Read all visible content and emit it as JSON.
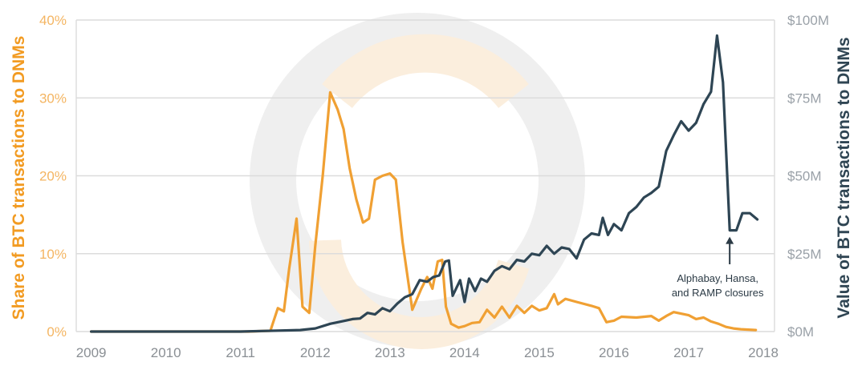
{
  "chart_data": {
    "type": "line",
    "ylabel_left": "Share of BTC transactions to DNMs",
    "ylabel_right": "Value of BTC transactions to DNMs",
    "x_ticks": [
      "2009",
      "2010",
      "2011",
      "2012",
      "2013",
      "2014",
      "2015",
      "2016",
      "2017",
      "2018"
    ],
    "y_left_ticks": [
      "0%",
      "10%",
      "20%",
      "30%",
      "40%"
    ],
    "y_right_ticks": [
      "$0M",
      "$25M",
      "$50M",
      "$75M",
      "$100M"
    ],
    "ylim_left": [
      0,
      40
    ],
    "ylim_right": [
      0,
      100
    ],
    "xlim": [
      2008.8,
      2018.15
    ],
    "grid": true,
    "colors": {
      "share": "#f0a033",
      "value": "#2e4554",
      "watermark": "#efefef"
    },
    "series": [
      {
        "axis": "left",
        "points": [
          [
            2009.0,
            0
          ],
          [
            2011.1,
            0
          ],
          [
            2011.4,
            0.1
          ],
          [
            2011.5,
            3.0
          ],
          [
            2011.58,
            2.6
          ],
          [
            2011.65,
            8.0
          ],
          [
            2011.75,
            14.5
          ],
          [
            2011.83,
            3.2
          ],
          [
            2011.92,
            2.4
          ],
          [
            2012.0,
            11.0
          ],
          [
            2012.1,
            20.0
          ],
          [
            2012.2,
            30.7
          ],
          [
            2012.3,
            28.5
          ],
          [
            2012.38,
            26.0
          ],
          [
            2012.46,
            21.0
          ],
          [
            2012.55,
            17.0
          ],
          [
            2012.64,
            14.0
          ],
          [
            2012.72,
            14.5
          ],
          [
            2012.8,
            19.5
          ],
          [
            2012.9,
            20.0
          ],
          [
            2013.0,
            20.3
          ],
          [
            2013.08,
            19.5
          ],
          [
            2013.17,
            11.5
          ],
          [
            2013.3,
            2.8
          ],
          [
            2013.42,
            5.5
          ],
          [
            2013.5,
            7.0
          ],
          [
            2013.57,
            5.5
          ],
          [
            2013.64,
            9.0
          ],
          [
            2013.7,
            9.2
          ],
          [
            2013.75,
            3.2
          ],
          [
            2013.82,
            1.0
          ],
          [
            2013.92,
            0.5
          ],
          [
            2014.0,
            0.7
          ],
          [
            2014.1,
            1.1
          ],
          [
            2014.2,
            1.2
          ],
          [
            2014.3,
            2.8
          ],
          [
            2014.4,
            1.8
          ],
          [
            2014.5,
            3.2
          ],
          [
            2014.6,
            1.8
          ],
          [
            2014.7,
            3.3
          ],
          [
            2014.8,
            2.4
          ],
          [
            2014.9,
            3.3
          ],
          [
            2015.0,
            2.7
          ],
          [
            2015.1,
            3.0
          ],
          [
            2015.2,
            4.8
          ],
          [
            2015.25,
            3.5
          ],
          [
            2015.35,
            4.2
          ],
          [
            2015.5,
            3.8
          ],
          [
            2015.7,
            3.3
          ],
          [
            2015.8,
            3.0
          ],
          [
            2015.9,
            1.2
          ],
          [
            2016.0,
            1.4
          ],
          [
            2016.1,
            1.9
          ],
          [
            2016.3,
            1.8
          ],
          [
            2016.5,
            2.0
          ],
          [
            2016.6,
            1.4
          ],
          [
            2016.7,
            2.0
          ],
          [
            2016.8,
            2.5
          ],
          [
            2017.0,
            2.1
          ],
          [
            2017.1,
            1.6
          ],
          [
            2017.2,
            1.8
          ],
          [
            2017.3,
            1.3
          ],
          [
            2017.4,
            1.0
          ],
          [
            2017.5,
            0.6
          ],
          [
            2017.6,
            0.4
          ],
          [
            2017.7,
            0.3
          ],
          [
            2017.9,
            0.2
          ]
        ]
      },
      {
        "axis": "right",
        "points": [
          [
            2009.0,
            0
          ],
          [
            2011.0,
            0
          ],
          [
            2011.5,
            0.3
          ],
          [
            2011.8,
            0.5
          ],
          [
            2012.0,
            1.0
          ],
          [
            2012.2,
            2.5
          ],
          [
            2012.4,
            3.5
          ],
          [
            2012.5,
            4.0
          ],
          [
            2012.6,
            4.2
          ],
          [
            2012.7,
            6.0
          ],
          [
            2012.8,
            5.5
          ],
          [
            2012.9,
            7.5
          ],
          [
            2013.0,
            6.5
          ],
          [
            2013.1,
            9.0
          ],
          [
            2013.2,
            11.0
          ],
          [
            2013.3,
            12.0
          ],
          [
            2013.4,
            16.5
          ],
          [
            2013.5,
            16.0
          ],
          [
            2013.58,
            17.5
          ],
          [
            2013.66,
            18.0
          ],
          [
            2013.74,
            22.5
          ],
          [
            2013.79,
            22.8
          ],
          [
            2013.84,
            11.5
          ],
          [
            2013.94,
            16.5
          ],
          [
            2014.0,
            9.5
          ],
          [
            2014.06,
            17.0
          ],
          [
            2014.14,
            13.0
          ],
          [
            2014.22,
            17.0
          ],
          [
            2014.3,
            16.0
          ],
          [
            2014.4,
            19.5
          ],
          [
            2014.5,
            21.0
          ],
          [
            2014.6,
            20.0
          ],
          [
            2014.7,
            23.0
          ],
          [
            2014.8,
            22.5
          ],
          [
            2014.9,
            25.0
          ],
          [
            2015.0,
            24.5
          ],
          [
            2015.1,
            27.5
          ],
          [
            2015.2,
            25.0
          ],
          [
            2015.3,
            27.0
          ],
          [
            2015.4,
            26.5
          ],
          [
            2015.5,
            23.5
          ],
          [
            2015.6,
            29.5
          ],
          [
            2015.7,
            31.5
          ],
          [
            2015.8,
            31.0
          ],
          [
            2015.85,
            36.5
          ],
          [
            2015.92,
            31.0
          ],
          [
            2016.0,
            34.5
          ],
          [
            2016.1,
            32.5
          ],
          [
            2016.2,
            38.0
          ],
          [
            2016.3,
            40.0
          ],
          [
            2016.4,
            43.0
          ],
          [
            2016.5,
            44.5
          ],
          [
            2016.6,
            46.5
          ],
          [
            2016.7,
            58.0
          ],
          [
            2016.8,
            63.0
          ],
          [
            2016.9,
            67.5
          ],
          [
            2017.0,
            64.5
          ],
          [
            2017.1,
            67.0
          ],
          [
            2017.2,
            73.0
          ],
          [
            2017.3,
            77.0
          ],
          [
            2017.38,
            95.0
          ],
          [
            2017.46,
            80.0
          ],
          [
            2017.55,
            32.5
          ],
          [
            2017.64,
            32.5
          ],
          [
            2017.72,
            38.0
          ],
          [
            2017.82,
            38.0
          ],
          [
            2017.92,
            36.0
          ]
        ]
      }
    ],
    "annotation": {
      "lines": [
        "Alphabay, Hansa,",
        "and RAMP closures"
      ],
      "x": 2017.55,
      "y_right": 32.5
    }
  }
}
